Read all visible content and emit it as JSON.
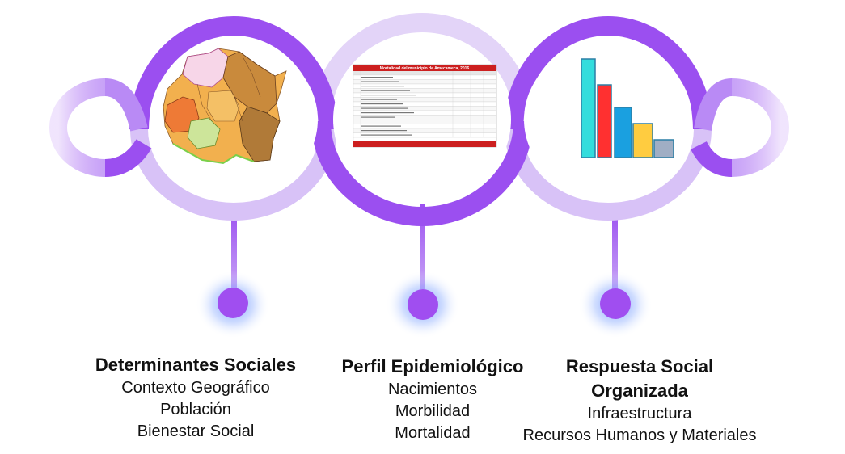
{
  "colors": {
    "ring": "#9b4ff0",
    "ring_light": "#d7c3f6",
    "ring_lighter": "#e6daf8",
    "dot": "#a04ef0",
    "glow": "#5a8cff"
  },
  "icons": [
    "map-thumbnail",
    "mortality-table-thumbnail",
    "bar-chart-icon"
  ],
  "thumbnail_table": {
    "title": "Mortalidad del municipio de Amecameca, 2016"
  },
  "columns": [
    {
      "title": "Determinantes Sociales",
      "items": [
        "Contexto Geográfico",
        "Población",
        "Bienestar Social"
      ]
    },
    {
      "title": "Perfil Epidemiológico",
      "items": [
        "Nacimientos",
        "Morbilidad",
        "Mortalidad"
      ]
    },
    {
      "title_lines": [
        "Respuesta Social",
        "Organizada"
      ],
      "items": [
        "Infraestructura",
        "Recursos Humanos y Materiales"
      ]
    }
  ]
}
